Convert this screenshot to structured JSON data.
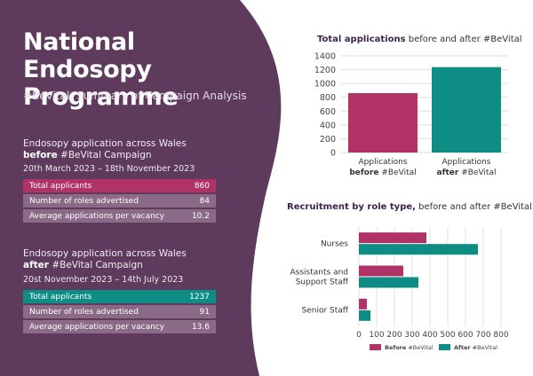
{
  "colors": {
    "purple": "#5e3b5c",
    "pink": "#b03266",
    "teal": "#0e8d84",
    "muted_row": "#8a6a86"
  },
  "header": {
    "title": "National Endosopy Programme",
    "subtitle": "#BeVital: Summary of Campaign Analysis"
  },
  "before": {
    "heading_line1": "Endosopy application across Wales",
    "heading_bold": "before",
    "heading_rest": " #BeVital Campaign",
    "dates": "20th March 2023 – 18th November 2023",
    "rows": [
      {
        "label": "Total applicants",
        "value": "860"
      },
      {
        "label": "Number of roles advertised",
        "value": "84"
      },
      {
        "label": "Average applications per vacancy",
        "value": "10.2"
      }
    ]
  },
  "after": {
    "heading_line1": "Endosopy application across Wales",
    "heading_bold": "after",
    "heading_rest": " #BeVital Campaign",
    "dates": "20st November 2023 – 14th July 2023",
    "rows": [
      {
        "label": "Total applicants",
        "value": "1237"
      },
      {
        "label": "Number of roles advertised",
        "value": "91"
      },
      {
        "label": "Average applications per vacancy",
        "value": "13.6"
      }
    ]
  },
  "chart_data": [
    {
      "type": "bar",
      "title_bold": "Total applications",
      "title_rest": " before and after #BeVital",
      "categories": [
        {
          "line1": "Applications",
          "bold": "before",
          "rest": " #BeVital"
        },
        {
          "line1": "Applications",
          "bold": "after",
          "rest": " #BeVital"
        }
      ],
      "values": [
        860,
        1237
      ],
      "colors": [
        "#b03266",
        "#0e8d84"
      ],
      "ylim": [
        0,
        1400
      ],
      "yticks": [
        0,
        200,
        400,
        600,
        800,
        1000,
        1200,
        1400
      ],
      "grid": true
    },
    {
      "type": "bar",
      "orientation": "horizontal",
      "title_bold": "Recruitment by role type,",
      "title_rest": " before and after #BeVital",
      "categories": [
        [
          "Nurses"
        ],
        [
          "Assistants and",
          "Support Staff"
        ],
        [
          "Senior Staff"
        ]
      ],
      "series": [
        {
          "name": "Before #BeVital",
          "legend_bold": "Before",
          "legend_rest": " #BeVital",
          "color": "#b03266",
          "values": [
            380,
            250,
            45
          ]
        },
        {
          "name": "After #BeVital",
          "legend_bold": "After",
          "legend_rest": " #BeVital",
          "color": "#0e8d84",
          "values": [
            670,
            335,
            65
          ]
        }
      ],
      "xlim": [
        0,
        800
      ],
      "xticks": [
        0,
        100,
        200,
        300,
        400,
        500,
        600,
        700,
        800
      ],
      "grid": true,
      "legend_position": "bottom"
    }
  ]
}
